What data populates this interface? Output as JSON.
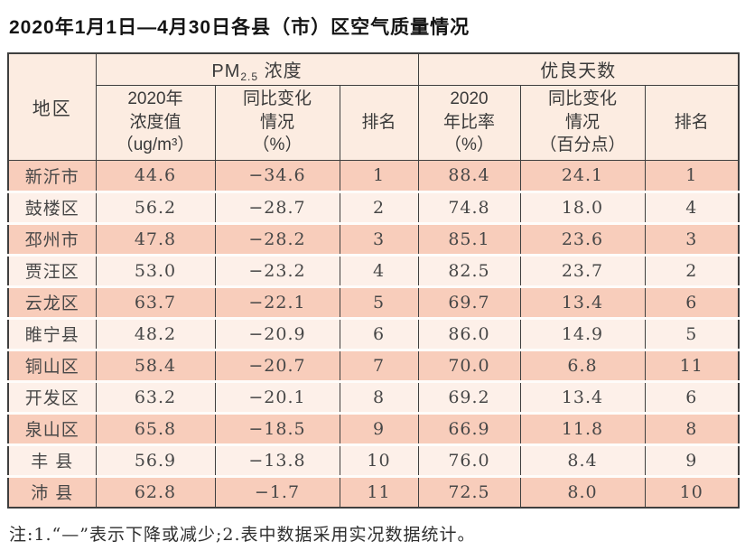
{
  "title": "2020年1月1日—4月30日各县（市）区空气质量情况",
  "table": {
    "region_header": "地区",
    "pm_group": {
      "prefix": "PM",
      "sub": "2.5",
      "suffix": " 浓度"
    },
    "good_group": "优良天数",
    "sub_headers": {
      "pm_value": "2020年\n浓度值\n（ug/m³）",
      "pm_change": "同比变化\n情况\n（%）",
      "pm_rank": "排名",
      "good_ratio": "2020\n年比率\n（%）",
      "good_change": "同比变化\n情况\n（百分点）",
      "good_rank": "排名"
    },
    "columns_order": [
      "region",
      "pm_value",
      "pm_change",
      "pm_rank",
      "ratio",
      "ratio_change",
      "rank"
    ],
    "rows": [
      {
        "region": "新沂市",
        "pm_value": "44.6",
        "pm_change": "−34.6",
        "pm_rank": "1",
        "ratio": "88.4",
        "ratio_change": "24.1",
        "rank": "1"
      },
      {
        "region": "鼓楼区",
        "pm_value": "56.2",
        "pm_change": "−28.7",
        "pm_rank": "2",
        "ratio": "74.8",
        "ratio_change": "18.0",
        "rank": "4"
      },
      {
        "region": "邳州市",
        "pm_value": "47.8",
        "pm_change": "−28.2",
        "pm_rank": "3",
        "ratio": "85.1",
        "ratio_change": "23.6",
        "rank": "3"
      },
      {
        "region": "贾汪区",
        "pm_value": "53.0",
        "pm_change": "−23.2",
        "pm_rank": "4",
        "ratio": "82.5",
        "ratio_change": "23.7",
        "rank": "2"
      },
      {
        "region": "云龙区",
        "pm_value": "63.7",
        "pm_change": "−22.1",
        "pm_rank": "5",
        "ratio": "69.7",
        "ratio_change": "13.4",
        "rank": "6"
      },
      {
        "region": "睢宁县",
        "pm_value": "48.2",
        "pm_change": "−20.9",
        "pm_rank": "6",
        "ratio": "86.0",
        "ratio_change": "14.9",
        "rank": "5"
      },
      {
        "region": "铜山区",
        "pm_value": "58.4",
        "pm_change": "−20.7",
        "pm_rank": "7",
        "ratio": "70.0",
        "ratio_change": "6.8",
        "rank": "11"
      },
      {
        "region": "开发区",
        "pm_value": "63.2",
        "pm_change": "−20.1",
        "pm_rank": "8",
        "ratio": "69.2",
        "ratio_change": "13.4",
        "rank": "6"
      },
      {
        "region": "泉山区",
        "pm_value": "65.8",
        "pm_change": "−18.5",
        "pm_rank": "9",
        "ratio": "66.9",
        "ratio_change": "11.8",
        "rank": "8"
      },
      {
        "region": "丰 县",
        "pm_value": "56.9",
        "pm_change": "−13.8",
        "pm_rank": "10",
        "ratio": "76.0",
        "ratio_change": "8.4",
        "rank": "9"
      },
      {
        "region": "沛 县",
        "pm_value": "62.8",
        "pm_change": "−1.7",
        "pm_rank": "11",
        "ratio": "72.5",
        "ratio_change": "8.0",
        "rank": "10"
      }
    ]
  },
  "note": "注:1.“—”表示下降或减少;2.表中数据采用实况数据统计。",
  "colors": {
    "row_band_dark": "#f8cdbb",
    "row_band_light": "#fdf0e9",
    "header_bg": "#fcece1",
    "border_dark": "#3f3f3f"
  }
}
